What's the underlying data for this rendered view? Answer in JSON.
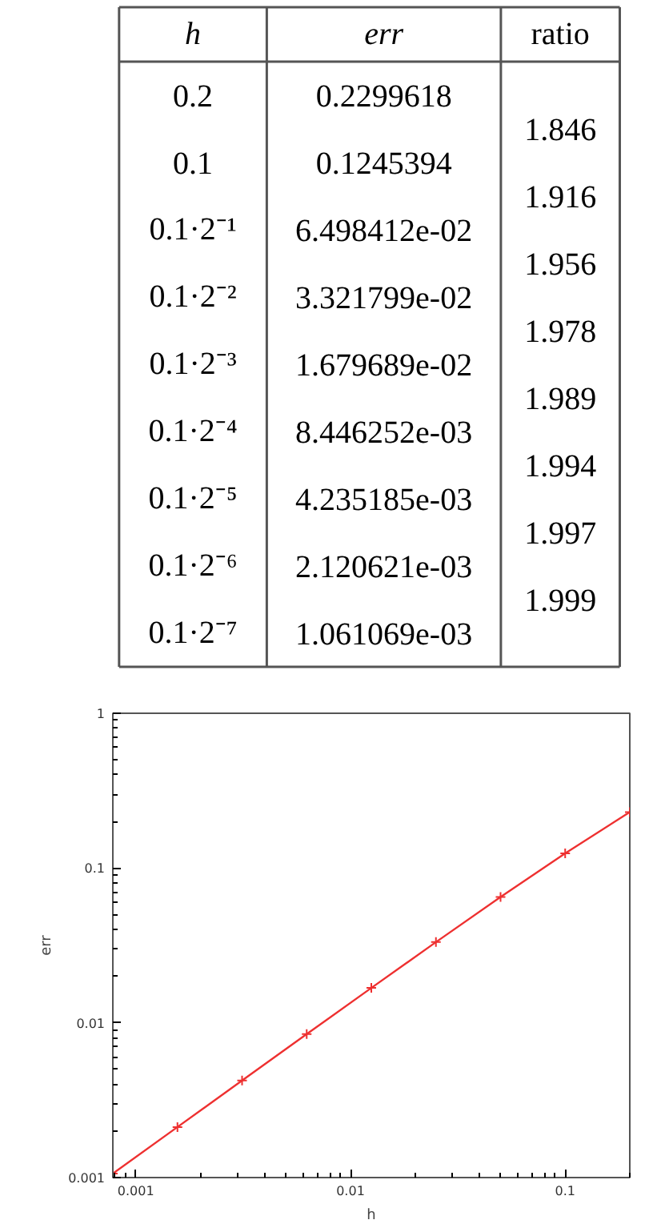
{
  "chart_data": {
    "type": "line",
    "xlabel": "h",
    "ylabel": "err",
    "x": [
      0.2,
      0.1,
      0.05,
      0.025,
      0.0125,
      0.00625,
      0.003125,
      0.0015625,
      0.00078125
    ],
    "series": [
      {
        "color": "#ee3030",
        "values": [
          0.2299618,
          0.1245394,
          0.06498412,
          0.03321799,
          0.01679689,
          0.008446252,
          0.004235185,
          0.002120621,
          0.001061069
        ]
      }
    ],
    "annotations": [
      "0.2",
      "0.1",
      "0.1·2⁻¹",
      "0.1·2⁻²",
      "0.1·2⁻³",
      "0.1·2⁻⁴",
      "0.1·2⁻⁵",
      "0.1·2⁻⁶",
      "0.1·2⁻⁷",
      "0.2299618",
      "0.1245394",
      "6.498412e-02",
      "3.321799e-02",
      "1.679689e-02",
      "8.446252e-03",
      "4.235185e-03",
      "2.120621e-03",
      "1.061069e-03",
      "ratio",
      "1.846",
      "1.916",
      "1.956",
      "1.978",
      "1.989",
      "1.994",
      "1.997",
      "1.999"
    ],
    "log": "xy",
    "xlim": [
      0.00078125,
      0.2
    ],
    "ylim": [
      0.001,
      1
    ],
    "xticks": [
      0.001,
      0.01,
      0.1
    ],
    "yticks": [
      0.001,
      0.01,
      0.1,
      1
    ],
    "grid": false,
    "marker": "cross",
    "line_style": "solid"
  }
}
